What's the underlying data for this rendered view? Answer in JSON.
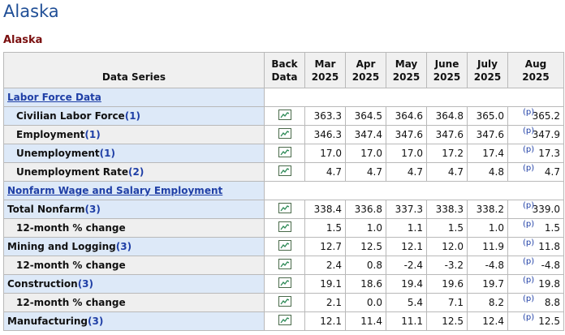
{
  "header": {
    "title": "Alaska",
    "subtitle": "Alaska"
  },
  "table": {
    "columns": [
      "Data Series",
      "Back Data",
      "Mar 2025",
      "Apr 2025",
      "May 2025",
      "June 2025",
      "July 2025",
      "Aug 2025"
    ],
    "preliminary_mark": "(p)",
    "rows": [
      {
        "section": "Labor Force Data"
      },
      {
        "label": "Civilian Labor Force",
        "note": "(1)",
        "indent": true,
        "values": [
          "363.3",
          "364.5",
          "364.6",
          "364.8",
          "365.0",
          "365.2"
        ]
      },
      {
        "label": "Employment",
        "note": "(1)",
        "indent": true,
        "values": [
          "346.3",
          "347.4",
          "347.6",
          "347.6",
          "347.6",
          "347.9"
        ]
      },
      {
        "label": "Unemployment",
        "note": "(1)",
        "indent": true,
        "values": [
          "17.0",
          "17.0",
          "17.0",
          "17.2",
          "17.4",
          "17.3"
        ]
      },
      {
        "label": "Unemployment Rate",
        "note": "(2)",
        "indent": true,
        "values": [
          "4.7",
          "4.7",
          "4.7",
          "4.7",
          "4.8",
          "4.7"
        ]
      },
      {
        "section": "Nonfarm Wage and Salary Employment"
      },
      {
        "label": "Total Nonfarm",
        "note": "(3)",
        "indent": false,
        "values": [
          "338.4",
          "336.8",
          "337.3",
          "338.3",
          "338.2",
          "339.0"
        ]
      },
      {
        "label": "12-month % change",
        "indent": true,
        "values": [
          "1.5",
          "1.0",
          "1.1",
          "1.5",
          "1.0",
          "1.5"
        ]
      },
      {
        "label": "Mining and Logging",
        "note": "(3)",
        "indent": false,
        "values": [
          "12.7",
          "12.5",
          "12.1",
          "12.0",
          "11.9",
          "11.8"
        ]
      },
      {
        "label": "12-month % change",
        "indent": true,
        "values": [
          "2.4",
          "0.8",
          "-2.4",
          "-3.2",
          "-4.8",
          "-4.8"
        ]
      },
      {
        "label": "Construction",
        "note": "(3)",
        "indent": false,
        "values": [
          "19.1",
          "18.6",
          "19.4",
          "19.6",
          "19.7",
          "19.8"
        ]
      },
      {
        "label": "12-month % change",
        "indent": true,
        "values": [
          "2.1",
          "0.0",
          "5.4",
          "7.1",
          "8.2",
          "8.8"
        ]
      },
      {
        "label": "Manufacturing",
        "note": "(3)",
        "indent": false,
        "values": [
          "12.1",
          "11.4",
          "11.1",
          "12.5",
          "12.4",
          "12.5"
        ]
      }
    ]
  }
}
